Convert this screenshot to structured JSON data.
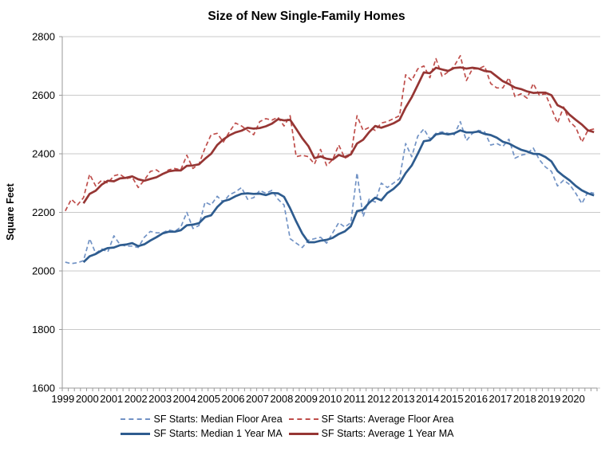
{
  "colors": {
    "median_dashed": "#7293c5",
    "average_dashed": "#bf4e4b",
    "median_ma_solid": "#2e5c8f",
    "average_ma_solid": "#963634",
    "gridline": "#c9c9c9",
    "axis": "#9a9a9a",
    "text": "#000000"
  },
  "chart_data": {
    "type": "line",
    "title": "Size of New Single-Family Homes",
    "xlabel": "",
    "ylabel": "Square Feet",
    "ylim": [
      1600,
      2800
    ],
    "y_ticks": [
      1600,
      1800,
      2000,
      2200,
      2400,
      2600,
      2800
    ],
    "x_frequency": "quarterly",
    "x_start": "1999Q1",
    "x_end": "2020Q4",
    "years": [
      "1999",
      "2000",
      "2001",
      "2002",
      "2003",
      "2004",
      "2005",
      "2006",
      "2007",
      "2008",
      "2009",
      "2010",
      "2011",
      "2012",
      "2013",
      "2014",
      "2015",
      "2016",
      "2017",
      "2018",
      "2019",
      "2020"
    ],
    "grid": "horizontal",
    "legend_position": "bottom",
    "series": [
      {
        "id": "median-floor-area",
        "name": "SF Starts: Median Floor Area",
        "style": "dashed",
        "color": "#7293c5",
        "start_index": 0,
        "values": [
          2030,
          2025,
          2028,
          2035,
          2110,
          2060,
          2075,
          2065,
          2120,
          2090,
          2085,
          2085,
          2080,
          2115,
          2135,
          2130,
          2130,
          2140,
          2135,
          2150,
          2200,
          2145,
          2155,
          2235,
          2225,
          2255,
          2235,
          2260,
          2270,
          2285,
          2245,
          2250,
          2275,
          2265,
          2275,
          2245,
          2225,
          2110,
          2095,
          2080,
          2105,
          2110,
          2115,
          2095,
          2130,
          2165,
          2150,
          2165,
          2335,
          2185,
          2245,
          2235,
          2300,
          2285,
          2300,
          2315,
          2435,
          2390,
          2460,
          2485,
          2450,
          2470,
          2475,
          2470,
          2465,
          2510,
          2445,
          2470,
          2480,
          2475,
          2430,
          2435,
          2425,
          2450,
          2385,
          2395,
          2400,
          2420,
          2380,
          2355,
          2340,
          2290,
          2310,
          2295,
          2265,
          2230,
          2270,
          2265
        ]
      },
      {
        "id": "average-floor-area",
        "name": "SF Starts: Average Floor Area",
        "style": "dashed",
        "color": "#bf4e4b",
        "start_index": 0,
        "values": [
          2205,
          2245,
          2225,
          2250,
          2330,
          2290,
          2310,
          2300,
          2325,
          2330,
          2315,
          2320,
          2285,
          2310,
          2340,
          2345,
          2330,
          2345,
          2350,
          2345,
          2395,
          2350,
          2365,
          2420,
          2465,
          2470,
          2440,
          2475,
          2505,
          2495,
          2480,
          2465,
          2510,
          2520,
          2515,
          2525,
          2495,
          2530,
          2390,
          2395,
          2390,
          2365,
          2415,
          2360,
          2380,
          2430,
          2385,
          2395,
          2530,
          2480,
          2490,
          2480,
          2505,
          2510,
          2520,
          2530,
          2670,
          2650,
          2690,
          2700,
          2660,
          2725,
          2665,
          2680,
          2700,
          2735,
          2650,
          2690,
          2690,
          2700,
          2640,
          2625,
          2625,
          2660,
          2595,
          2605,
          2590,
          2640,
          2600,
          2605,
          2555,
          2505,
          2560,
          2510,
          2490,
          2440,
          2480,
          2485
        ]
      },
      {
        "id": "median-1-year-ma",
        "name": "SF Starts: Median 1 Year MA",
        "style": "solid",
        "color": "#2e5c8f",
        "start_index": 3,
        "values": [
          2030,
          2050,
          2058,
          2070,
          2078,
          2080,
          2088,
          2090,
          2095,
          2085,
          2091,
          2104,
          2115,
          2128,
          2134,
          2134,
          2139,
          2156,
          2158,
          2163,
          2184,
          2190,
          2218,
          2238,
          2244,
          2255,
          2263,
          2265,
          2263,
          2264,
          2259,
          2266,
          2265,
          2253,
          2214,
          2169,
          2128,
          2098,
          2098,
          2103,
          2106,
          2113,
          2126,
          2135,
          2153,
          2204,
          2209,
          2233,
          2250,
          2241,
          2266,
          2280,
          2300,
          2334,
          2360,
          2400,
          2443,
          2446,
          2466,
          2470,
          2466,
          2470,
          2480,
          2473,
          2473,
          2476,
          2468,
          2464,
          2455,
          2441,
          2435,
          2424,
          2414,
          2408,
          2400,
          2399,
          2389,
          2374,
          2341,
          2324,
          2309,
          2290,
          2275,
          2265,
          2258
        ]
      },
      {
        "id": "average-1-year-ma",
        "name": "SF Starts: Average 1 Year MA",
        "style": "solid",
        "color": "#963634",
        "start_index": 3,
        "values": [
          2231,
          2263,
          2274,
          2295,
          2308,
          2306,
          2316,
          2318,
          2323,
          2313,
          2308,
          2314,
          2320,
          2331,
          2340,
          2343,
          2343,
          2359,
          2360,
          2364,
          2383,
          2400,
          2430,
          2449,
          2463,
          2473,
          2479,
          2489,
          2486,
          2488,
          2494,
          2503,
          2518,
          2514,
          2516,
          2485,
          2453,
          2426,
          2385,
          2391,
          2383,
          2380,
          2396,
          2389,
          2398,
          2435,
          2448,
          2474,
          2495,
          2489,
          2496,
          2504,
          2516,
          2558,
          2593,
          2635,
          2678,
          2675,
          2694,
          2688,
          2683,
          2693,
          2695,
          2691,
          2694,
          2691,
          2683,
          2680,
          2664,
          2648,
          2638,
          2626,
          2621,
          2613,
          2608,
          2609,
          2609,
          2600,
          2566,
          2556,
          2533,
          2516,
          2500,
          2480,
          2474
        ]
      }
    ]
  }
}
